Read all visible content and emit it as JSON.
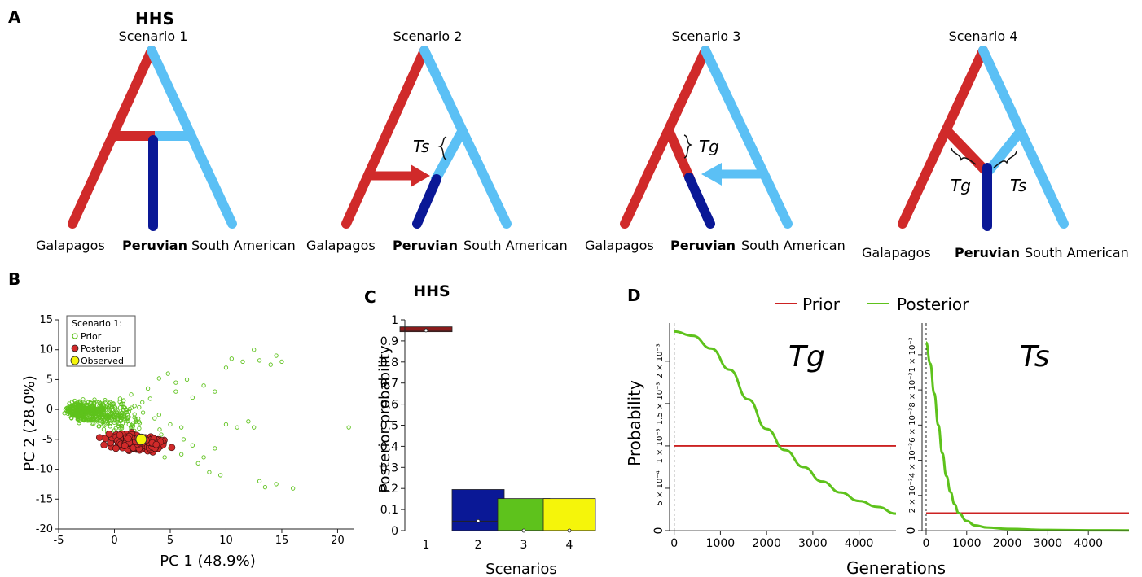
{
  "panels": {
    "A": "A",
    "B": "B",
    "C": "C",
    "D": "D"
  },
  "colors": {
    "red": "#d02a2a",
    "light_blue": "#5bc0f5",
    "dark_blue": "#0a1896",
    "green": "#5ec21c",
    "yellow": "#f5f50a",
    "prior_line": "#cc2222"
  },
  "panel_a": {
    "hhs": "HHS",
    "scenarios": [
      {
        "title": "Scenario 1",
        "left": "Galapagos",
        "middle": "Peruvian",
        "right": "South American",
        "labels": []
      },
      {
        "title": "Scenario 2",
        "left": "Galapagos",
        "middle": "Peruvian",
        "right": "South American",
        "labels": [
          "Ts"
        ]
      },
      {
        "title": "Scenario 3",
        "left": "Galapagos",
        "middle": "Peruvian",
        "right": "South American",
        "labels": [
          "Tg"
        ]
      },
      {
        "title": "Scenario 4",
        "left": "Galapagos",
        "middle": "Peruvian",
        "right": "South American",
        "labels": [
          "Tg",
          "Ts"
        ]
      }
    ]
  },
  "chart_data": [
    {
      "type": "scatter",
      "xlabel": "PC 1 (48.9%)",
      "ylabel": "PC 2 (28.0%)",
      "xlim": [
        -5,
        21.5
      ],
      "ylim": [
        -20,
        15
      ],
      "xticks": [
        -5,
        0,
        5,
        10,
        15,
        20
      ],
      "yticks": [
        -20,
        -15,
        -10,
        -5,
        0,
        5,
        10,
        15
      ],
      "legend": {
        "title": "Scenario 1:",
        "entries": [
          "Prior",
          "Posterior",
          "Observed"
        ],
        "placement": "top-left"
      },
      "series": [
        {
          "name": "Prior",
          "points": [
            [
              -4.2,
              0.3
            ],
            [
              -3.5,
              0.8
            ],
            [
              -2.8,
              0.2
            ],
            [
              -2,
              -0.5
            ],
            [
              -1.2,
              1
            ],
            [
              -0.5,
              0.5
            ],
            [
              0.5,
              1.8
            ],
            [
              1.5,
              2.5
            ],
            [
              2.5,
              1.2
            ],
            [
              3,
              3.5
            ],
            [
              4,
              5.2
            ],
            [
              4.8,
              6
            ],
            [
              3.6,
              -1.5
            ],
            [
              5,
              -2.5
            ],
            [
              6,
              -3
            ],
            [
              7,
              -6
            ],
            [
              8,
              -8
            ],
            [
              8.5,
              -10.5
            ],
            [
              9.5,
              -11
            ],
            [
              10,
              -2.5
            ],
            [
              11,
              -3
            ],
            [
              12,
              -2
            ],
            [
              10.5,
              8.5
            ],
            [
              11.5,
              8
            ],
            [
              12.5,
              10
            ],
            [
              13,
              8.2
            ],
            [
              14,
              7.5
            ],
            [
              14.5,
              9
            ],
            [
              15,
              8
            ],
            [
              12.5,
              -3
            ],
            [
              13,
              -12
            ],
            [
              13.5,
              -13
            ],
            [
              14.5,
              -12.5
            ],
            [
              16,
              -13.2
            ],
            [
              21,
              -3
            ],
            [
              5.5,
              3
            ],
            [
              6.5,
              5
            ],
            [
              8,
              4
            ],
            [
              9,
              3
            ],
            [
              10,
              7
            ],
            [
              7,
              2
            ],
            [
              6.2,
              -5
            ],
            [
              7.5,
              -9
            ],
            [
              5,
              -6.5
            ],
            [
              4.5,
              -8
            ],
            [
              9,
              -6.5
            ],
            [
              2.5,
              -6
            ],
            [
              1,
              0
            ],
            [
              -3,
              -1
            ],
            [
              -1.5,
              -2
            ],
            [
              0,
              -3.5
            ],
            [
              2,
              -2
            ],
            [
              4.2,
              -4.2
            ],
            [
              6,
              -7.5
            ],
            [
              3.2,
              1.8
            ],
            [
              5.5,
              4.5
            ],
            [
              -2.5,
              0.5
            ],
            [
              -1,
              0.8
            ],
            [
              0.3,
              -1.2
            ],
            [
              1.8,
              0.6
            ]
          ]
        },
        {
          "name": "Posterior",
          "center": [
            2,
            -5.5
          ],
          "spread": [
            2.2,
            1.1
          ]
        },
        {
          "name": "Observed",
          "points": [
            [
              2.4,
              -5
            ]
          ]
        }
      ]
    },
    {
      "type": "bar",
      "title": "HHS",
      "xlabel": "Scenarios",
      "ylabel": "Posterior probability",
      "categories": [
        "1",
        "2",
        "3",
        "4"
      ],
      "values": [
        0.955,
        0.195,
        0.152,
        0.152
      ],
      "interval_lower": [
        0.95,
        0.045,
        0.0,
        0.0
      ],
      "ylim": [
        0,
        1
      ],
      "yticks": [
        0,
        0.1,
        0.2,
        0.3,
        0.4,
        0.5,
        0.6,
        0.7,
        0.8,
        0.9,
        1
      ]
    },
    {
      "type": "line",
      "annotation": "Tg",
      "xlabel": "Generations",
      "ylabel": "Probability",
      "xticks": [
        0,
        1000,
        2000,
        3000,
        4000
      ],
      "ytick_labels": [
        "0",
        "5 × 10⁻⁴",
        "1 × 10⁻³",
        "1.5 × 10⁻³",
        "2 × 10⁻³"
      ],
      "xlim": [
        -100,
        4800
      ],
      "ylim": [
        0,
        0.00245
      ],
      "legend": {
        "entries": [
          "Prior",
          "Posterior"
        ],
        "placement": "top"
      },
      "series": [
        {
          "name": "Prior",
          "x": [
            0,
            4800
          ],
          "y": [
            0.001,
            0.001
          ]
        },
        {
          "name": "Posterior",
          "x": [
            0,
            400,
            800,
            1200,
            1600,
            2000,
            2400,
            2800,
            3200,
            3600,
            4000,
            4400,
            4800
          ],
          "y": [
            0.00235,
            0.0023,
            0.00215,
            0.0019,
            0.00155,
            0.0012,
            0.00095,
            0.00075,
            0.00058,
            0.00045,
            0.00035,
            0.00028,
            0.0002
          ]
        }
      ]
    },
    {
      "type": "line",
      "annotation": "Ts",
      "xlabel": "Generations",
      "xticks": [
        0,
        1000,
        2000,
        3000,
        4000
      ],
      "ytick_labels": [
        "0",
        "2 × 10⁻³",
        "4 × 10⁻³",
        "6 × 10⁻³",
        "8 × 10⁻³",
        "1 × 10⁻²"
      ],
      "xlim": [
        -100,
        5000
      ],
      "ylim": [
        0,
        0.0118
      ],
      "series": [
        {
          "name": "Prior",
          "x": [
            0,
            5000
          ],
          "y": [
            0.001,
            0.001
          ]
        },
        {
          "name": "Posterior",
          "x": [
            0,
            100,
            200,
            300,
            400,
            500,
            600,
            700,
            800,
            1000,
            1200,
            1500,
            2000,
            3000,
            4000,
            5000
          ],
          "y": [
            0.0107,
            0.0095,
            0.0078,
            0.006,
            0.0044,
            0.0031,
            0.0022,
            0.0015,
            0.001,
            0.00055,
            0.0003,
            0.00018,
            0.0001,
            4e-05,
            2e-05,
            1e-05
          ]
        }
      ]
    }
  ]
}
